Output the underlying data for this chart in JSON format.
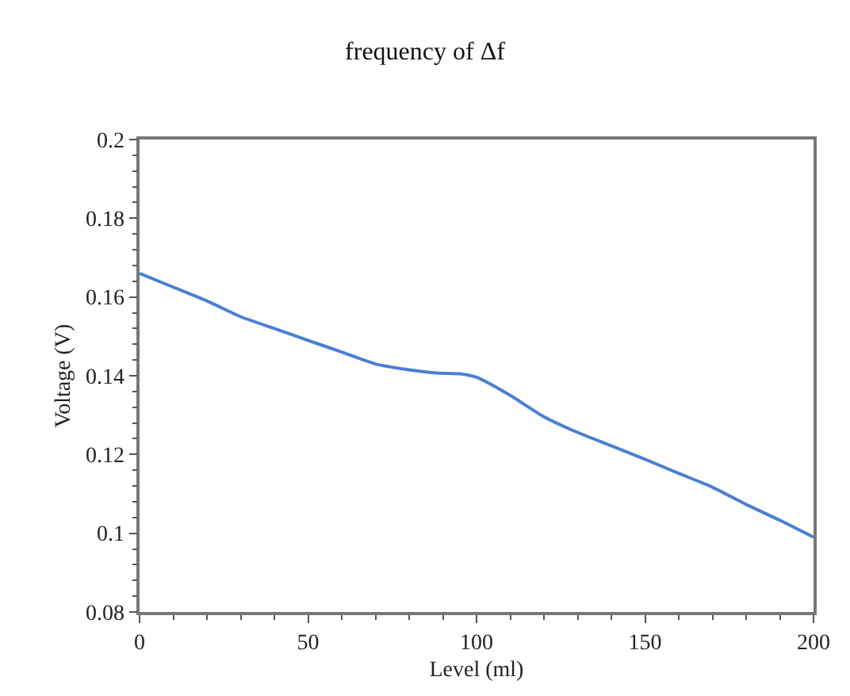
{
  "chart_data": {
    "type": "line",
    "title": "frequency of Δf",
    "xlabel": "Level (ml)",
    "ylabel": "Voltage (V)",
    "x": [
      0,
      10,
      20,
      30,
      40,
      50,
      60,
      70,
      80,
      88,
      95,
      100,
      110,
      120,
      130,
      140,
      150,
      160,
      170,
      180,
      190,
      200
    ],
    "series": [
      {
        "color": "#4a7fd4",
        "values": [
          0.166,
          0.1625,
          0.159,
          0.155,
          0.152,
          0.149,
          0.146,
          0.143,
          0.1415,
          0.1407,
          0.1405,
          0.1396,
          0.135,
          0.1296,
          0.1256,
          0.1222,
          0.1188,
          0.1152,
          0.1117,
          0.1073,
          0.1033,
          0.099
        ]
      }
    ],
    "xlim": [
      0,
      200
    ],
    "xticks": [
      0,
      50,
      100,
      150,
      200
    ],
    "ylim": [
      0.08,
      0.2
    ],
    "yticks": [
      0.08,
      0.1,
      0.12,
      0.14,
      0.16,
      0.18,
      0.2
    ],
    "marker": "none",
    "line_style": "solid"
  }
}
